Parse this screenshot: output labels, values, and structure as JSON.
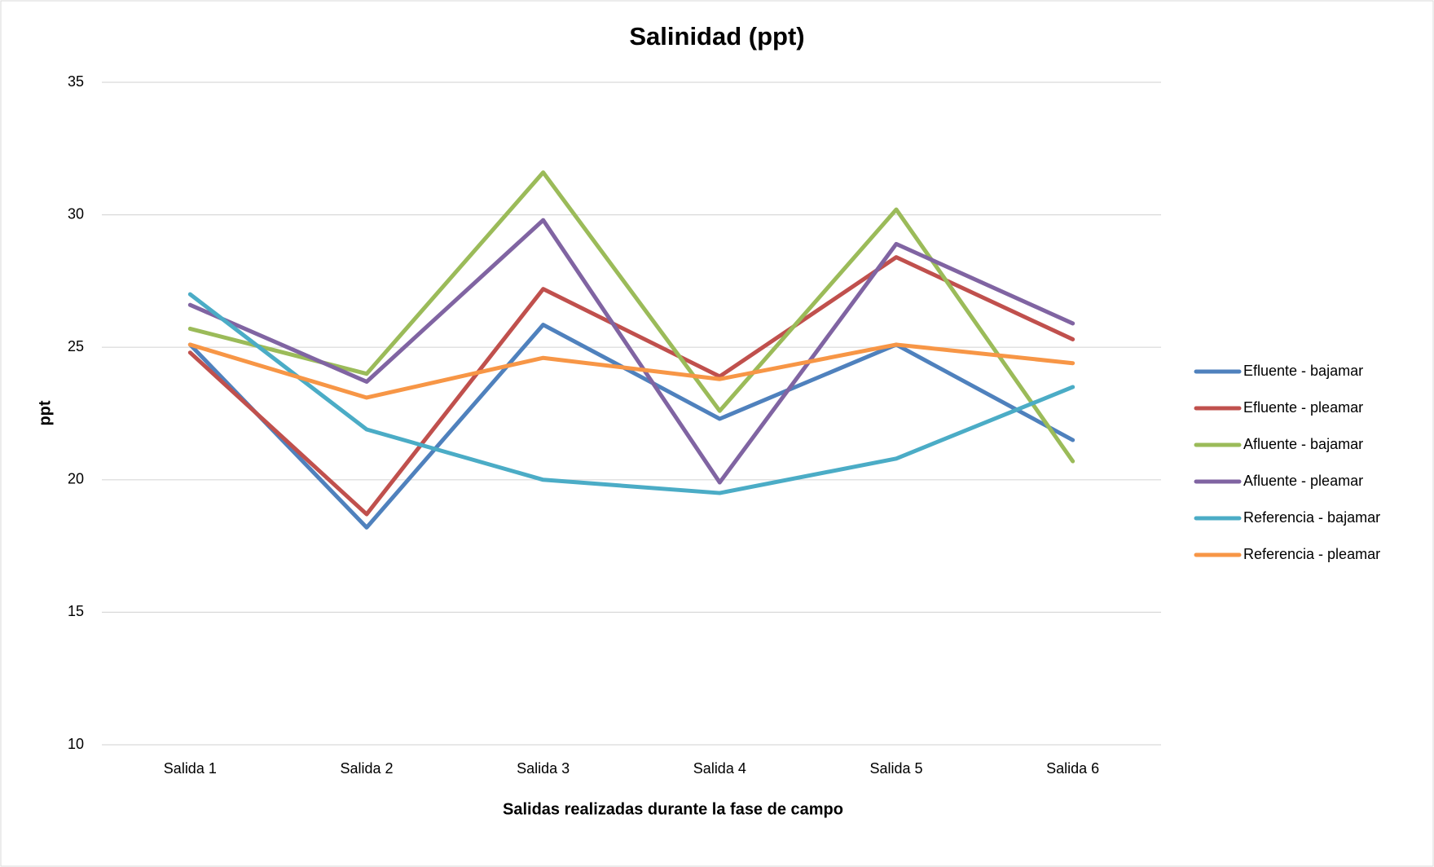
{
  "chart_data": {
    "type": "line",
    "title": "Salinidad (ppt)",
    "x_label": "Salidas realizadas durante la fase de campo",
    "y_label": "ppt",
    "categories": [
      "Salida 1",
      "Salida 2",
      "Salida 3",
      "Salida 4",
      "Salida 5",
      "Salida 6"
    ],
    "series": [
      {
        "name": "Efluente - bajamar",
        "color": "#4f81bd",
        "values": [
          25.1,
          18.2,
          25.85,
          22.3,
          25.1,
          21.5
        ]
      },
      {
        "name": "Efluente - pleamar",
        "color": "#c0504d",
        "values": [
          24.8,
          18.7,
          27.2,
          23.9,
          28.4,
          25.3
        ]
      },
      {
        "name": "Afluente - bajamar",
        "color": "#9bbb59",
        "values": [
          25.7,
          24.0,
          31.6,
          22.6,
          30.2,
          20.7
        ]
      },
      {
        "name": "Afluente - pleamar",
        "color": "#8064a2",
        "values": [
          26.6,
          23.7,
          29.8,
          19.9,
          28.9,
          25.9
        ]
      },
      {
        "name": "Referencia - bajamar",
        "color": "#4bacc6",
        "values": [
          27.0,
          21.9,
          20.0,
          19.5,
          20.8,
          23.5
        ]
      },
      {
        "name": "Referencia - pleamar",
        "color": "#f79646",
        "values": [
          25.1,
          23.1,
          24.6,
          23.8,
          25.1,
          24.4
        ]
      }
    ],
    "ylim": [
      10,
      35
    ],
    "yticks": [
      10,
      15,
      20,
      25,
      30,
      35
    ],
    "grid": true,
    "legend": "right"
  }
}
